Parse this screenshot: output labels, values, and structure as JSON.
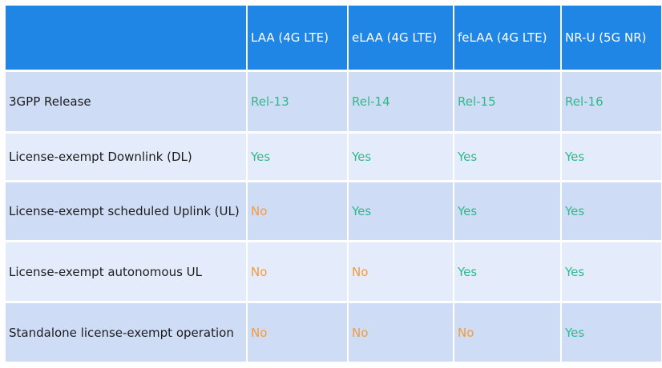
{
  "table": {
    "headers": [
      "",
      "LAA (4G LTE)",
      "eLAA (4G LTE)",
      "feLAA (4G LTE)",
      "NR-U (5G NR)"
    ],
    "rows": [
      {
        "label": "3GPP Release",
        "values": [
          "Rel-13",
          "Rel-14",
          "Rel-15",
          "Rel-16"
        ],
        "status": [
          "yes",
          "yes",
          "yes",
          "yes"
        ]
      },
      {
        "label": "License-exempt Downlink (DL)",
        "values": [
          "Yes",
          "Yes",
          "Yes",
          "Yes"
        ],
        "status": [
          "yes",
          "yes",
          "yes",
          "yes"
        ]
      },
      {
        "label": "License-exempt scheduled Uplink (UL)",
        "values": [
          "No",
          "Yes",
          "Yes",
          "Yes"
        ],
        "status": [
          "no",
          "yes",
          "yes",
          "yes"
        ]
      },
      {
        "label": "License-exempt autonomous UL",
        "values": [
          "No",
          "No",
          "Yes",
          "Yes"
        ],
        "status": [
          "no",
          "no",
          "yes",
          "yes"
        ]
      },
      {
        "label": "Standalone license-exempt operation",
        "values": [
          "No",
          "No",
          "No",
          "Yes"
        ],
        "status": [
          "no",
          "no",
          "no",
          "yes"
        ]
      }
    ]
  },
  "colors": {
    "header_bg": "#1f86e6",
    "row_dark": "#cfdcf6",
    "row_light": "#e4ecfb",
    "yes_green": "#2fb98a",
    "no_orange": "#f59a3a"
  }
}
